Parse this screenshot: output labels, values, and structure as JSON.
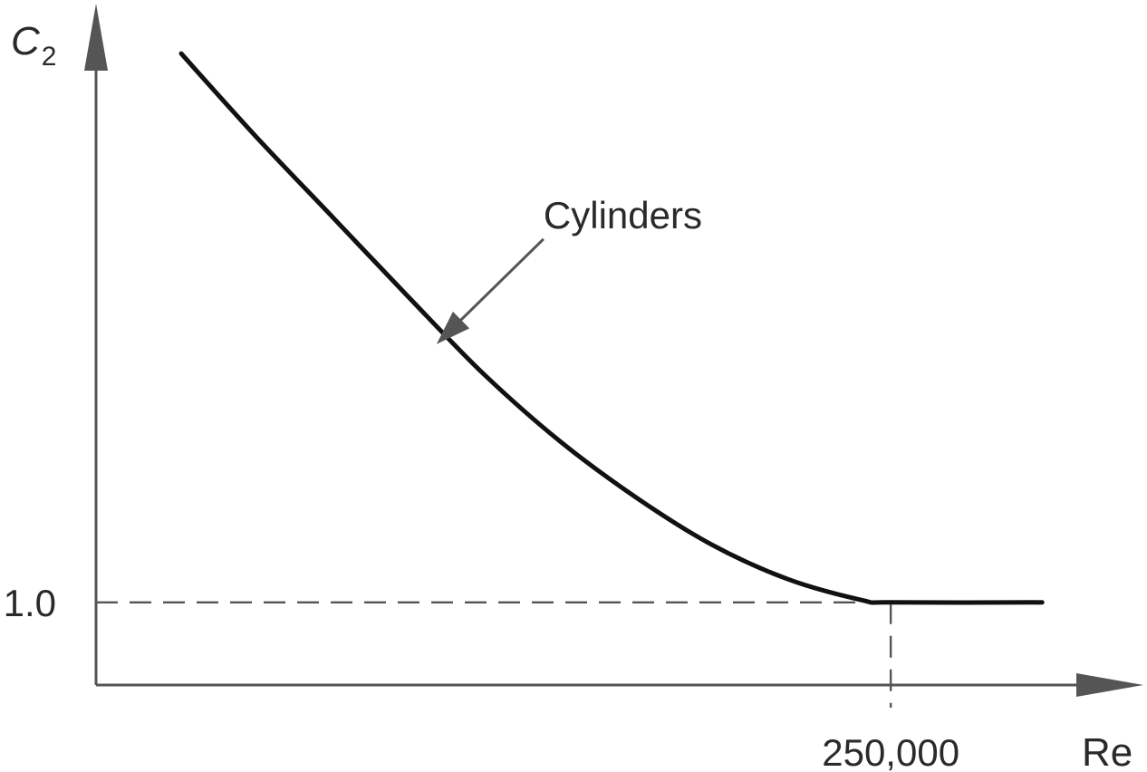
{
  "chart_data": {
    "type": "line",
    "title": "",
    "xlabel": "Re",
    "ylabel": "C",
    "ylabel_subscript": "2",
    "x_ticks": [
      {
        "value": 250000,
        "label": "250,000"
      }
    ],
    "y_ticks": [
      {
        "value": 1.0,
        "label": "1.0"
      }
    ],
    "xlim": [
      -170000,
      350000
    ],
    "ylim": [
      0.616,
      3.74
    ],
    "grid": false,
    "legend": "none",
    "series": [
      {
        "name": "",
        "x": [
          -125000,
          -85000,
          -45000,
          -5000,
          35000,
          75000,
          115000,
          155000,
          195000,
          235000,
          250000,
          330000
        ],
        "y": [
          3.55,
          3.16,
          2.79,
          2.42,
          2.06,
          1.75,
          1.49,
          1.27,
          1.11,
          1.01,
          1.0,
          1.0
        ]
      }
    ],
    "reference_lines": [
      {
        "axis": "y",
        "value": 1.0,
        "style": "dashed"
      },
      {
        "axis": "x",
        "value": 250000,
        "style": "dashed"
      }
    ],
    "annotations": [
      {
        "text": "Cylinders",
        "points_to": {
          "x": 10000,
          "y": 2.2
        }
      }
    ],
    "colors": {
      "curve": "#111111",
      "axes": "#555555",
      "dashes": "#555555",
      "text": "#2a2a2a"
    }
  }
}
